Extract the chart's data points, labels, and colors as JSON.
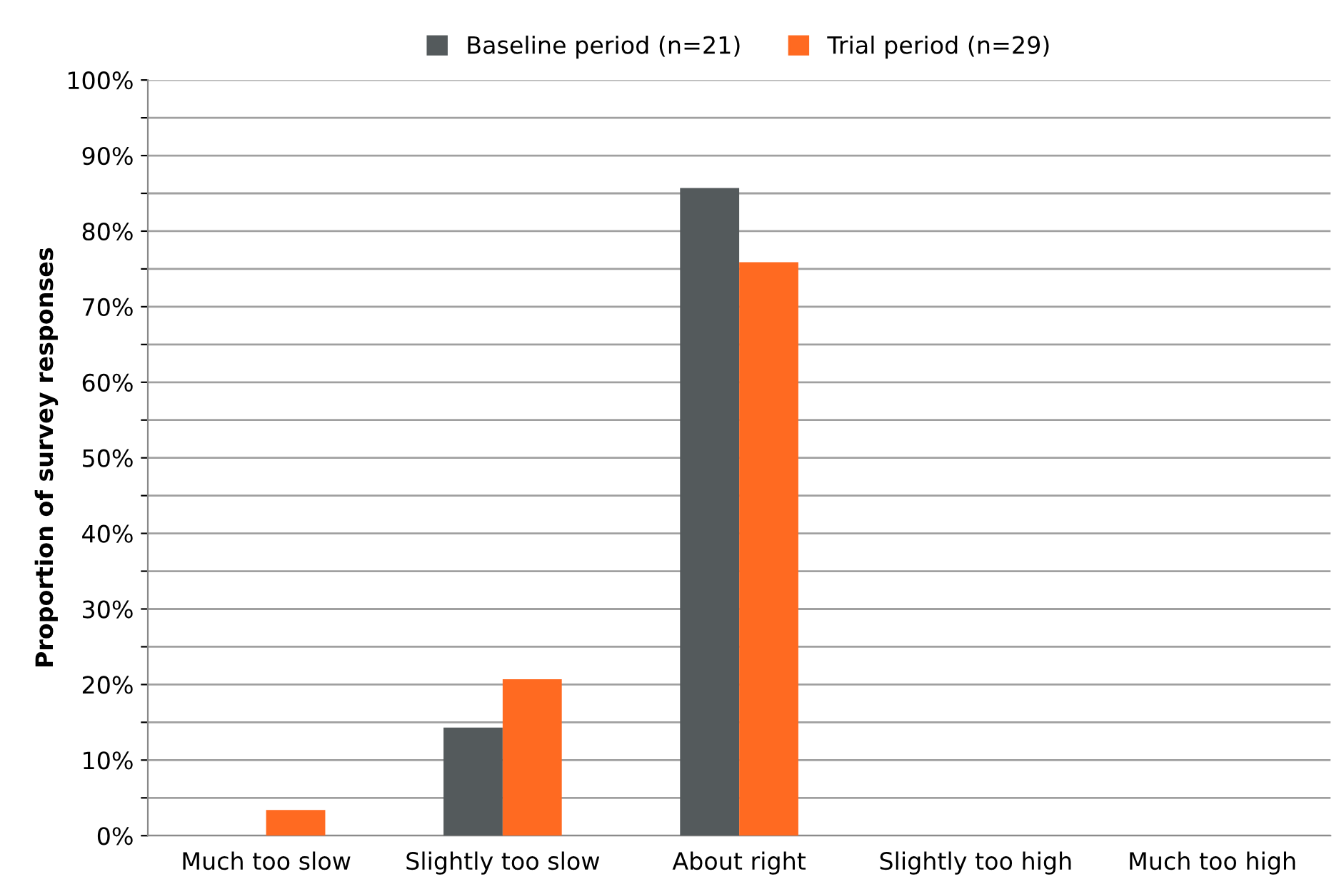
{
  "chart_data": {
    "type": "bar",
    "ylabel": "Proportion of survey responses",
    "categories": [
      "Much too slow",
      "Slightly too slow",
      "About right",
      "Slightly too high",
      "Much too high"
    ],
    "series": [
      {
        "name": "Baseline period (n=21)",
        "color": "#545a5c",
        "values": [
          0,
          14.3,
          85.7,
          0,
          0
        ]
      },
      {
        "name": "Trial period (n=29)",
        "color": "#ff6a21",
        "values": [
          3.4,
          20.7,
          75.9,
          0,
          0
        ]
      }
    ],
    "ylim": [
      0,
      100
    ],
    "yticks": [
      {
        "value": 0,
        "label": "0%"
      },
      {
        "value": 5,
        "label": null
      },
      {
        "value": 10,
        "label": "10%"
      },
      {
        "value": 15,
        "label": null
      },
      {
        "value": 20,
        "label": "20%"
      },
      {
        "value": 25,
        "label": null
      },
      {
        "value": 30,
        "label": "30%"
      },
      {
        "value": 35,
        "label": null
      },
      {
        "value": 40,
        "label": "40%"
      },
      {
        "value": 45,
        "label": null
      },
      {
        "value": 50,
        "label": "50%"
      },
      {
        "value": 55,
        "label": null
      },
      {
        "value": 60,
        "label": "60%"
      },
      {
        "value": 65,
        "label": null
      },
      {
        "value": 70,
        "label": "70%"
      },
      {
        "value": 75,
        "label": null
      },
      {
        "value": 80,
        "label": "80%"
      },
      {
        "value": 85,
        "label": null
      },
      {
        "value": 90,
        "label": "90%"
      },
      {
        "value": 95,
        "label": null
      },
      {
        "value": 100,
        "label": "100%"
      }
    ],
    "grid": "y",
    "legend": "top"
  }
}
